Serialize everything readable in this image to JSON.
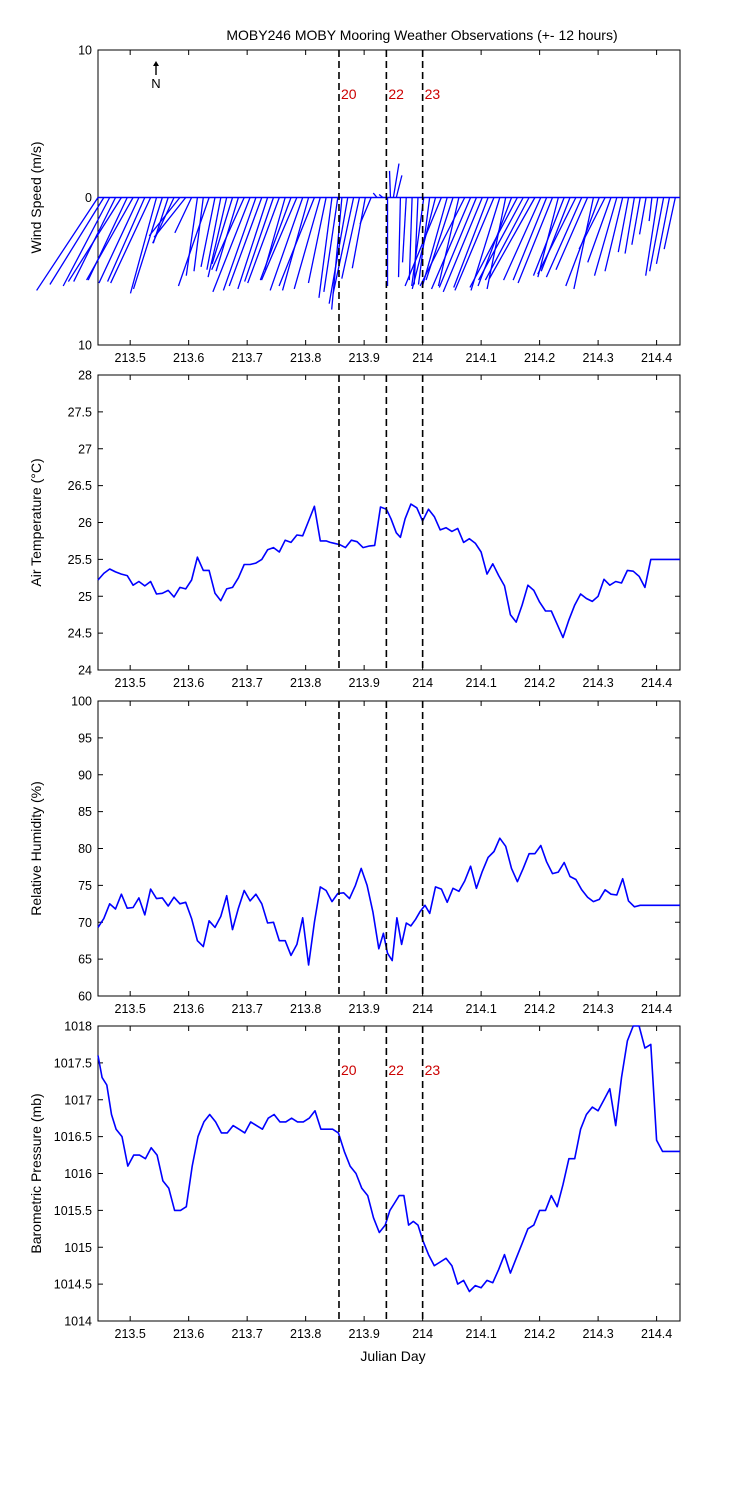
{
  "title": "MOBY246 MOBY Mooring Weather Observations (+- 12 hours)",
  "north_label": "N",
  "x_axis_label": "Julian Day",
  "colors": {
    "line": "#0000ff",
    "marker_label": "#cc0000",
    "axis": "#000000"
  },
  "markers": [
    {
      "label": "20",
      "x": 213.857
    },
    {
      "label": "22",
      "x": 213.938
    },
    {
      "label": "23",
      "x": 214.0
    }
  ],
  "chart_data": [
    {
      "type": "line",
      "name": "wind",
      "variant": "wind-vector-stick",
      "ylabel": "Wind Speed (m/s)",
      "ylim": [
        -10,
        10
      ],
      "yticks": [
        10,
        0,
        10
      ],
      "ytick_values": [
        10,
        0,
        -10
      ],
      "xlim": [
        213.445,
        214.44
      ],
      "xticks": [
        "213.5",
        "213.6",
        "213.7",
        "213.8",
        "213.9",
        "214",
        "214.1",
        "214.2",
        "214.3",
        "214.4"
      ],
      "show_marker_labels": true,
      "vectors": [
        [
          213.445,
          -6.6,
          -6.3
        ],
        [
          213.455,
          -5.8,
          -5.9
        ],
        [
          213.465,
          -5.0,
          -6.0
        ],
        [
          213.475,
          -4.5,
          -5.7
        ],
        [
          213.485,
          -5.7,
          -5.7
        ],
        [
          213.495,
          -4.2,
          -5.6
        ],
        [
          213.505,
          -5.0,
          -5.6
        ],
        [
          213.515,
          -4.3,
          -5.8
        ],
        [
          213.525,
          -4.0,
          -5.7
        ],
        [
          213.535,
          -4.3,
          -5.8
        ],
        [
          213.545,
          -2.8,
          -6.5
        ],
        [
          213.555,
          -3.1,
          -6.2
        ],
        [
          213.565,
          -1.6,
          -3.1
        ],
        [
          213.575,
          -2.3,
          -3.1
        ],
        [
          213.585,
          -3.3,
          -2.6
        ],
        [
          213.595,
          -3.4,
          -2.7
        ],
        [
          213.605,
          -1.8,
          -2.4
        ],
        [
          213.615,
          -1.2,
          -5.3
        ],
        [
          213.625,
          -1.0,
          -5.0
        ],
        [
          213.635,
          -3.3,
          -6.0
        ],
        [
          213.645,
          -1.5,
          -4.7
        ],
        [
          213.655,
          -1.5,
          -4.9
        ],
        [
          213.665,
          -2.0,
          -5.4
        ],
        [
          213.675,
          -2.2,
          -4.5
        ],
        [
          213.685,
          -2.4,
          -5.0
        ],
        [
          213.695,
          -3.5,
          -4.9
        ],
        [
          213.705,
          -4.0,
          -6.4
        ],
        [
          213.715,
          -3.5,
          -6.3
        ],
        [
          213.725,
          -3.5,
          -6.0
        ],
        [
          213.735,
          -3.2,
          -6.2
        ],
        [
          213.745,
          -3.1,
          -5.7
        ],
        [
          213.755,
          -3.4,
          -5.8
        ],
        [
          213.765,
          -2.2,
          -4.9
        ],
        [
          213.775,
          -3.3,
          -5.6
        ],
        [
          213.785,
          -3.8,
          -5.6
        ],
        [
          213.795,
          -3.5,
          -6.3
        ],
        [
          213.805,
          -2.8,
          -6.3
        ],
        [
          213.815,
          -3.8,
          -6.0
        ],
        [
          213.825,
          -2.8,
          -6.2
        ],
        [
          213.835,
          -1.9,
          -5.8
        ],
        [
          213.845,
          -1.4,
          -6.8
        ],
        [
          213.855,
          -1.5,
          -6.4
        ],
        [
          213.862,
          -1.1,
          -7.6
        ],
        [
          213.872,
          -2.0,
          -7.2
        ],
        [
          213.882,
          -2.2,
          -6.5
        ],
        [
          213.892,
          -1.9,
          -5.5
        ],
        [
          213.902,
          -1.4,
          -4.8
        ],
        [
          213.912,
          -1.2,
          -1.8
        ],
        [
          213.922,
          -0.4,
          0.3
        ],
        [
          213.932,
          -0.4,
          0.2
        ],
        [
          213.94,
          0.0,
          -6.0
        ],
        [
          213.945,
          -0.1,
          1.8
        ],
        [
          213.95,
          0.6,
          2.3
        ],
        [
          213.955,
          0.6,
          1.5
        ],
        [
          213.962,
          -0.2,
          -5.4
        ],
        [
          213.972,
          -0.4,
          -4.4
        ],
        [
          213.982,
          -0.3,
          -5.6
        ],
        [
          213.992,
          -0.4,
          -5.9
        ],
        [
          214.002,
          -1.3,
          -6.0
        ],
        [
          214.012,
          -1.2,
          -5.9
        ],
        [
          214.022,
          -2.5,
          -6.2
        ],
        [
          214.032,
          -3.9,
          -6.0
        ],
        [
          214.042,
          -2.7,
          -6.1
        ],
        [
          214.052,
          -2.9,
          -5.6
        ],
        [
          214.062,
          -2.2,
          -6.0
        ],
        [
          214.072,
          -4.8,
          -6.0
        ],
        [
          214.082,
          -4.2,
          -6.2
        ],
        [
          214.092,
          -4.0,
          -6.1
        ],
        [
          214.102,
          -4.2,
          -6.4
        ],
        [
          214.112,
          -3.7,
          -6.1
        ],
        [
          214.122,
          -4.2,
          -6.3
        ],
        [
          214.132,
          -3.1,
          -6.3
        ],
        [
          214.142,
          -2.0,
          -6.2
        ],
        [
          214.152,
          -3.6,
          -6.0
        ],
        [
          214.162,
          -5.1,
          -6.1
        ],
        [
          214.172,
          -4.8,
          -5.6
        ],
        [
          214.182,
          -4.7,
          -5.6
        ],
        [
          214.192,
          -4.9,
          -5.5
        ],
        [
          214.202,
          -4.0,
          -5.6
        ],
        [
          214.212,
          -3.6,
          -5.6
        ],
        [
          214.222,
          -3.7,
          -5.8
        ],
        [
          214.232,
          -2.2,
          -5.4
        ],
        [
          214.242,
          -3.3,
          -5.3
        ],
        [
          214.252,
          -3.1,
          -5.0
        ],
        [
          214.262,
          -4.1,
          -5.2
        ],
        [
          214.272,
          -3.8,
          -5.4
        ],
        [
          214.282,
          -3.4,
          -4.9
        ],
        [
          214.292,
          -2.1,
          -6.2
        ],
        [
          214.302,
          -3.6,
          -6.0
        ],
        [
          214.312,
          -2.8,
          -3.5
        ],
        [
          214.322,
          -2.5,
          -4.4
        ],
        [
          214.332,
          -2.4,
          -5.3
        ],
        [
          214.342,
          -1.9,
          -5.0
        ],
        [
          214.352,
          -1.1,
          -3.7
        ],
        [
          214.362,
          -1.0,
          -3.8
        ],
        [
          214.372,
          -0.9,
          -3.2
        ],
        [
          214.382,
          -0.7,
          -2.5
        ],
        [
          214.392,
          -0.3,
          -1.6
        ],
        [
          214.402,
          -1.3,
          -5.3
        ],
        [
          214.412,
          -1.5,
          -5.0
        ],
        [
          214.422,
          -1.4,
          -4.5
        ],
        [
          214.432,
          -1.2,
          -3.5
        ]
      ]
    },
    {
      "type": "line",
      "name": "air-temp",
      "ylabel": "Air Temperature (°C)",
      "ylim": [
        24,
        28
      ],
      "yticks": [
        24,
        24.5,
        25,
        25.5,
        26,
        26.5,
        27,
        27.5,
        28
      ],
      "xlim": [
        213.445,
        214.44
      ],
      "xticks": [
        "213.5",
        "213.6",
        "213.7",
        "213.8",
        "213.9",
        "214",
        "214.1",
        "214.2",
        "214.3",
        "214.4"
      ],
      "x": [
        213.445,
        213.455,
        213.465,
        213.475,
        213.485,
        213.495,
        213.505,
        213.515,
        213.525,
        213.535,
        213.545,
        213.555,
        213.565,
        213.575,
        213.585,
        213.595,
        213.605,
        213.615,
        213.625,
        213.635,
        213.645,
        213.655,
        213.665,
        213.675,
        213.685,
        213.695,
        213.705,
        213.715,
        213.725,
        213.735,
        213.745,
        213.755,
        213.765,
        213.775,
        213.785,
        213.795,
        213.805,
        213.815,
        213.825,
        213.835,
        213.842,
        213.848,
        213.858,
        213.868,
        213.878,
        213.888,
        213.898,
        213.908,
        213.918,
        213.928,
        213.938,
        213.946,
        213.955,
        213.962,
        213.97,
        213.98,
        213.99,
        214.0,
        214.01,
        214.02,
        214.03,
        214.04,
        214.05,
        214.06,
        214.07,
        214.08,
        214.09,
        214.1,
        214.11,
        214.12,
        214.13,
        214.14,
        214.15,
        214.16,
        214.17,
        214.18,
        214.19,
        214.2,
        214.21,
        214.22,
        214.23,
        214.24,
        214.25,
        214.26,
        214.27,
        214.28,
        214.29,
        214.3,
        214.31,
        214.32,
        214.33,
        214.34,
        214.35,
        214.36,
        214.37,
        214.38,
        214.39,
        214.4,
        214.41,
        214.42,
        214.43,
        214.44
      ],
      "values": [
        25.22,
        25.31,
        25.37,
        25.33,
        25.3,
        25.28,
        25.15,
        25.2,
        25.14,
        25.2,
        25.03,
        25.04,
        25.08,
        24.99,
        25.12,
        25.1,
        25.22,
        25.53,
        25.35,
        25.35,
        25.04,
        24.94,
        25.1,
        25.12,
        25.25,
        25.43,
        25.43,
        25.45,
        25.5,
        25.63,
        25.66,
        25.6,
        25.76,
        25.73,
        25.83,
        25.82,
        26.02,
        26.22,
        25.75,
        25.75,
        25.73,
        25.72,
        25.7,
        25.66,
        25.76,
        25.74,
        25.66,
        25.68,
        25.69,
        26.21,
        26.18,
        26.05,
        25.86,
        25.8,
        26.05,
        26.25,
        26.2,
        26.02,
        26.18,
        26.08,
        25.9,
        25.93,
        25.88,
        25.92,
        25.73,
        25.78,
        25.72,
        25.6,
        25.3,
        25.44,
        25.28,
        25.14,
        24.75,
        24.65,
        24.88,
        25.15,
        25.08,
        24.92,
        24.8,
        24.8,
        24.62,
        24.44,
        24.68,
        24.88,
        25.03,
        24.97,
        24.93,
        25.0,
        25.23,
        25.15,
        25.2,
        25.18,
        25.35,
        25.34,
        25.27,
        25.12,
        25.5,
        25.5,
        25.5,
        25.5,
        25.5,
        25.5
      ]
    },
    {
      "type": "line",
      "name": "rel-humidity",
      "ylabel": "Relative Humidity (%)",
      "ylim": [
        60,
        100
      ],
      "yticks": [
        60,
        65,
        70,
        75,
        80,
        85,
        90,
        95,
        100
      ],
      "xlim": [
        213.445,
        214.44
      ],
      "xticks": [
        "213.5",
        "213.6",
        "213.7",
        "213.8",
        "213.9",
        "214",
        "214.1",
        "214.2",
        "214.3",
        "214.4"
      ],
      "x": [
        213.445,
        213.455,
        213.465,
        213.475,
        213.485,
        213.495,
        213.505,
        213.515,
        213.525,
        213.535,
        213.545,
        213.555,
        213.565,
        213.575,
        213.585,
        213.595,
        213.605,
        213.615,
        213.625,
        213.635,
        213.645,
        213.655,
        213.665,
        213.675,
        213.685,
        213.695,
        213.705,
        213.715,
        213.725,
        213.735,
        213.745,
        213.755,
        213.765,
        213.775,
        213.785,
        213.795,
        213.805,
        213.815,
        213.825,
        213.835,
        213.845,
        213.855,
        213.865,
        213.875,
        213.885,
        213.895,
        213.905,
        213.915,
        213.925,
        213.933,
        213.94,
        213.948,
        213.956,
        213.964,
        213.972,
        213.98,
        213.988,
        213.996,
        214.004,
        214.012,
        214.022,
        214.032,
        214.042,
        214.052,
        214.062,
        214.072,
        214.082,
        214.092,
        214.102,
        214.112,
        214.122,
        214.132,
        214.142,
        214.152,
        214.162,
        214.172,
        214.182,
        214.192,
        214.202,
        214.212,
        214.222,
        214.232,
        214.242,
        214.252,
        214.262,
        214.272,
        214.282,
        214.292,
        214.302,
        214.312,
        214.322,
        214.332,
        214.342,
        214.352,
        214.362,
        214.372,
        214.382,
        214.392,
        214.402,
        214.412,
        214.422,
        214.432,
        214.44
      ],
      "values": [
        69.3,
        70.5,
        72.5,
        71.8,
        73.8,
        71.9,
        72.0,
        73.3,
        71.0,
        74.5,
        73.2,
        73.3,
        72.2,
        73.4,
        72.5,
        72.7,
        70.5,
        67.5,
        66.7,
        70.2,
        69.3,
        70.8,
        73.6,
        69.0,
        71.9,
        74.3,
        72.9,
        73.8,
        72.5,
        69.9,
        70.0,
        67.5,
        67.5,
        65.5,
        67.0,
        70.6,
        64.2,
        70.0,
        74.8,
        74.3,
        72.8,
        73.9,
        74.0,
        73.2,
        75.0,
        77.3,
        75.0,
        71.4,
        66.4,
        68.5,
        65.8,
        64.8,
        70.6,
        67.0,
        69.9,
        69.5,
        70.4,
        71.5,
        72.3,
        71.2,
        74.8,
        74.5,
        72.7,
        74.6,
        74.2,
        75.6,
        77.6,
        74.6,
        76.9,
        78.8,
        79.6,
        81.4,
        80.3,
        77.3,
        75.5,
        77.3,
        79.3,
        79.3,
        80.4,
        78.2,
        76.6,
        76.8,
        78.1,
        76.2,
        75.8,
        74.4,
        73.4,
        72.8,
        73.1,
        74.4,
        73.8,
        73.7,
        75.9,
        72.9,
        72.1,
        72.3,
        72.3,
        72.3,
        72.3,
        72.3,
        72.3,
        72.3,
        72.3
      ]
    },
    {
      "type": "line",
      "name": "baro-pressure",
      "ylabel": "Barometric Pressure (mb)",
      "ylim": [
        1014,
        1018
      ],
      "yticks": [
        1014,
        1014.5,
        1015,
        1015.5,
        1016,
        1016.5,
        1017,
        1017.5,
        1018
      ],
      "xlim": [
        213.445,
        214.44
      ],
      "xticks": [
        "213.5",
        "213.6",
        "213.7",
        "213.8",
        "213.9",
        "214",
        "214.1",
        "214.2",
        "214.3",
        "214.4"
      ],
      "show_marker_labels": true,
      "x": [
        213.445,
        213.452,
        213.46,
        213.468,
        213.476,
        213.486,
        213.496,
        213.506,
        213.516,
        213.526,
        213.536,
        213.546,
        213.556,
        213.566,
        213.576,
        213.586,
        213.596,
        213.606,
        213.616,
        213.626,
        213.636,
        213.646,
        213.656,
        213.666,
        213.676,
        213.686,
        213.696,
        213.706,
        213.716,
        213.726,
        213.736,
        213.746,
        213.756,
        213.766,
        213.776,
        213.786,
        213.796,
        213.806,
        213.816,
        213.826,
        213.836,
        213.846,
        213.856,
        213.866,
        213.876,
        213.886,
        213.896,
        213.906,
        213.916,
        213.926,
        213.936,
        213.944,
        213.952,
        213.96,
        213.968,
        213.976,
        213.984,
        213.992,
        214.0,
        214.01,
        214.02,
        214.03,
        214.04,
        214.05,
        214.06,
        214.07,
        214.08,
        214.09,
        214.1,
        214.11,
        214.12,
        214.13,
        214.14,
        214.15,
        214.16,
        214.17,
        214.18,
        214.19,
        214.2,
        214.21,
        214.22,
        214.23,
        214.24,
        214.25,
        214.26,
        214.27,
        214.28,
        214.29,
        214.3,
        214.31,
        214.32,
        214.33,
        214.34,
        214.35,
        214.36,
        214.37,
        214.38,
        214.39,
        214.4,
        214.41,
        214.42,
        214.43,
        214.44
      ],
      "values": [
        1017.6,
        1017.3,
        1017.2,
        1016.8,
        1016.6,
        1016.5,
        1016.1,
        1016.25,
        1016.25,
        1016.2,
        1016.35,
        1016.25,
        1015.9,
        1015.8,
        1015.5,
        1015.5,
        1015.55,
        1016.1,
        1016.5,
        1016.7,
        1016.8,
        1016.7,
        1016.55,
        1016.55,
        1016.65,
        1016.6,
        1016.55,
        1016.7,
        1016.65,
        1016.6,
        1016.75,
        1016.8,
        1016.7,
        1016.7,
        1016.75,
        1016.7,
        1016.7,
        1016.75,
        1016.85,
        1016.6,
        1016.6,
        1016.6,
        1016.55,
        1016.3,
        1016.1,
        1016.0,
        1015.8,
        1015.7,
        1015.4,
        1015.2,
        1015.3,
        1015.5,
        1015.6,
        1015.7,
        1015.7,
        1015.3,
        1015.35,
        1015.3,
        1015.1,
        1014.9,
        1014.75,
        1014.8,
        1014.85,
        1014.75,
        1014.5,
        1014.55,
        1014.4,
        1014.48,
        1014.45,
        1014.55,
        1014.52,
        1014.7,
        1014.9,
        1014.65,
        1014.85,
        1015.05,
        1015.25,
        1015.3,
        1015.5,
        1015.5,
        1015.7,
        1015.55,
        1015.85,
        1016.2,
        1016.2,
        1016.6,
        1016.8,
        1016.9,
        1016.85,
        1017.0,
        1017.15,
        1016.65,
        1017.3,
        1017.8,
        1018.0,
        1018.0,
        1017.7,
        1017.75,
        1016.45,
        1016.3,
        1016.3,
        1016.3,
        1016.3
      ]
    }
  ]
}
